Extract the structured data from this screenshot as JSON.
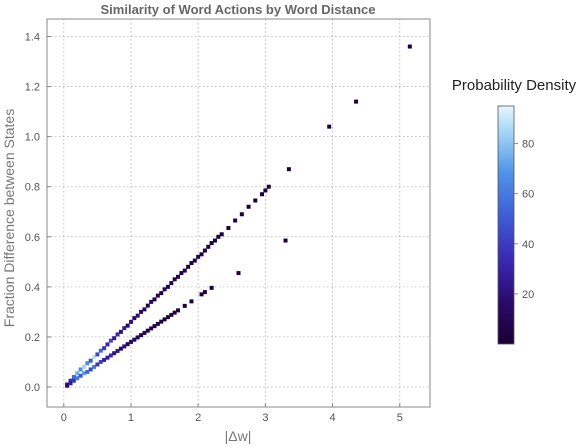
{
  "chart_data": {
    "type": "heatmap",
    "title": "Similarity of Word Actions by Word Distance",
    "xlabel": "|Δw|",
    "ylabel": "Fraction Difference between States",
    "xlim": [
      -0.25,
      5.45
    ],
    "ylim": [
      -0.08,
      1.47
    ],
    "x_ticks": [
      0,
      1,
      2,
      3,
      4,
      5
    ],
    "y_ticks": [
      0.0,
      0.2,
      0.4,
      0.6,
      0.8,
      1.0,
      1.2,
      1.4
    ],
    "x_tick_labels": [
      "0",
      "1",
      "2",
      "3",
      "4",
      "5"
    ],
    "y_tick_labels": [
      "0.0",
      "0.2",
      "0.4",
      "0.6",
      "0.8",
      "1.0",
      "1.2",
      "1.4"
    ],
    "grid": true,
    "legend": {
      "title": "Probability Density",
      "position": "right",
      "range": [
        0,
        95
      ],
      "ticks": [
        20,
        40,
        60,
        80
      ],
      "tick_labels": [
        "20",
        "40",
        "60",
        "80"
      ],
      "colors": [
        "#1a0033",
        "#2a0a6b",
        "#3a2ab5",
        "#3f60d8",
        "#4f94e8",
        "#9fd2f5",
        "#e6f6ff"
      ]
    },
    "series": [
      {
        "description_points": "upper band, slope ~0.26",
        "points": [
          {
            "x": 0.05,
            "y": 0.01,
            "d": 20
          },
          {
            "x": 0.1,
            "y": 0.025,
            "d": 30
          },
          {
            "x": 0.15,
            "y": 0.04,
            "d": 50
          },
          {
            "x": 0.2,
            "y": 0.055,
            "d": 70
          },
          {
            "x": 0.25,
            "y": 0.07,
            "d": 60
          },
          {
            "x": 0.3,
            "y": 0.08,
            "d": 80
          },
          {
            "x": 0.35,
            "y": 0.095,
            "d": 60
          },
          {
            "x": 0.4,
            "y": 0.105,
            "d": 45
          },
          {
            "x": 0.45,
            "y": 0.12,
            "d": 85
          },
          {
            "x": 0.5,
            "y": 0.13,
            "d": 40
          },
          {
            "x": 0.55,
            "y": 0.145,
            "d": 50
          },
          {
            "x": 0.6,
            "y": 0.155,
            "d": 35
          },
          {
            "x": 0.65,
            "y": 0.17,
            "d": 30
          },
          {
            "x": 0.7,
            "y": 0.185,
            "d": 40
          },
          {
            "x": 0.75,
            "y": 0.195,
            "d": 25
          },
          {
            "x": 0.8,
            "y": 0.21,
            "d": 30
          },
          {
            "x": 0.85,
            "y": 0.22,
            "d": 20
          },
          {
            "x": 0.9,
            "y": 0.235,
            "d": 25
          },
          {
            "x": 0.95,
            "y": 0.245,
            "d": 15
          },
          {
            "x": 1.0,
            "y": 0.26,
            "d": 20
          },
          {
            "x": 1.05,
            "y": 0.275,
            "d": 15
          },
          {
            "x": 1.1,
            "y": 0.285,
            "d": 18
          },
          {
            "x": 1.15,
            "y": 0.3,
            "d": 12
          },
          {
            "x": 1.2,
            "y": 0.31,
            "d": 15
          },
          {
            "x": 1.25,
            "y": 0.325,
            "d": 10
          },
          {
            "x": 1.3,
            "y": 0.34,
            "d": 12
          },
          {
            "x": 1.35,
            "y": 0.35,
            "d": 9
          },
          {
            "x": 1.4,
            "y": 0.365,
            "d": 10
          },
          {
            "x": 1.45,
            "y": 0.375,
            "d": 8
          },
          {
            "x": 1.5,
            "y": 0.39,
            "d": 10
          },
          {
            "x": 1.55,
            "y": 0.4,
            "d": 7
          },
          {
            "x": 1.6,
            "y": 0.415,
            "d": 8
          },
          {
            "x": 1.65,
            "y": 0.43,
            "d": 6
          },
          {
            "x": 1.7,
            "y": 0.44,
            "d": 7
          },
          {
            "x": 1.75,
            "y": 0.455,
            "d": 5
          },
          {
            "x": 1.8,
            "y": 0.465,
            "d": 6
          },
          {
            "x": 1.85,
            "y": 0.48,
            "d": 5
          },
          {
            "x": 1.9,
            "y": 0.495,
            "d": 5
          },
          {
            "x": 1.95,
            "y": 0.505,
            "d": 4
          },
          {
            "x": 2.0,
            "y": 0.52,
            "d": 5
          },
          {
            "x": 2.05,
            "y": 0.53,
            "d": 4
          },
          {
            "x": 2.1,
            "y": 0.545,
            "d": 4
          },
          {
            "x": 2.15,
            "y": 0.56,
            "d": 3
          },
          {
            "x": 2.2,
            "y": 0.575,
            "d": 4
          },
          {
            "x": 2.25,
            "y": 0.585,
            "d": 3
          },
          {
            "x": 2.3,
            "y": 0.6,
            "d": 3
          },
          {
            "x": 2.35,
            "y": 0.61,
            "d": 3
          },
          {
            "x": 2.45,
            "y": 0.635,
            "d": 3
          },
          {
            "x": 2.55,
            "y": 0.665,
            "d": 3
          },
          {
            "x": 2.65,
            "y": 0.69,
            "d": 2
          },
          {
            "x": 2.75,
            "y": 0.72,
            "d": 2
          },
          {
            "x": 2.85,
            "y": 0.745,
            "d": 2
          },
          {
            "x": 2.95,
            "y": 0.77,
            "d": 2
          },
          {
            "x": 3.0,
            "y": 0.785,
            "d": 2
          },
          {
            "x": 3.05,
            "y": 0.8,
            "d": 2
          },
          {
            "x": 3.35,
            "y": 0.87,
            "d": 2
          },
          {
            "x": 3.95,
            "y": 1.04,
            "d": 2
          },
          {
            "x": 4.35,
            "y": 1.14,
            "d": 2
          },
          {
            "x": 5.15,
            "y": 1.36,
            "d": 2
          }
        ]
      },
      {
        "description_points": "lower band, slope ~0.18",
        "points": [
          {
            "x": 0.05,
            "y": 0.005,
            "d": 15
          },
          {
            "x": 0.1,
            "y": 0.015,
            "d": 25
          },
          {
            "x": 0.15,
            "y": 0.025,
            "d": 35
          },
          {
            "x": 0.2,
            "y": 0.035,
            "d": 55
          },
          {
            "x": 0.25,
            "y": 0.045,
            "d": 45
          },
          {
            "x": 0.3,
            "y": 0.055,
            "d": 65
          },
          {
            "x": 0.35,
            "y": 0.06,
            "d": 50
          },
          {
            "x": 0.4,
            "y": 0.07,
            "d": 40
          },
          {
            "x": 0.45,
            "y": 0.08,
            "d": 55
          },
          {
            "x": 0.5,
            "y": 0.09,
            "d": 35
          },
          {
            "x": 0.55,
            "y": 0.1,
            "d": 40
          },
          {
            "x": 0.6,
            "y": 0.108,
            "d": 28
          },
          {
            "x": 0.65,
            "y": 0.117,
            "d": 25
          },
          {
            "x": 0.7,
            "y": 0.126,
            "d": 30
          },
          {
            "x": 0.75,
            "y": 0.135,
            "d": 20
          },
          {
            "x": 0.8,
            "y": 0.144,
            "d": 22
          },
          {
            "x": 0.85,
            "y": 0.153,
            "d": 15
          },
          {
            "x": 0.9,
            "y": 0.162,
            "d": 18
          },
          {
            "x": 0.95,
            "y": 0.171,
            "d": 12
          },
          {
            "x": 1.0,
            "y": 0.18,
            "d": 15
          },
          {
            "x": 1.05,
            "y": 0.189,
            "d": 11
          },
          {
            "x": 1.1,
            "y": 0.198,
            "d": 12
          },
          {
            "x": 1.15,
            "y": 0.207,
            "d": 9
          },
          {
            "x": 1.2,
            "y": 0.216,
            "d": 10
          },
          {
            "x": 1.25,
            "y": 0.225,
            "d": 8
          },
          {
            "x": 1.3,
            "y": 0.234,
            "d": 9
          },
          {
            "x": 1.35,
            "y": 0.243,
            "d": 7
          },
          {
            "x": 1.4,
            "y": 0.252,
            "d": 8
          },
          {
            "x": 1.45,
            "y": 0.261,
            "d": 6
          },
          {
            "x": 1.5,
            "y": 0.27,
            "d": 6
          },
          {
            "x": 1.55,
            "y": 0.279,
            "d": 5
          },
          {
            "x": 1.6,
            "y": 0.288,
            "d": 5
          },
          {
            "x": 1.65,
            "y": 0.297,
            "d": 4
          },
          {
            "x": 1.7,
            "y": 0.306,
            "d": 4
          },
          {
            "x": 1.8,
            "y": 0.324,
            "d": 3
          },
          {
            "x": 1.9,
            "y": 0.342,
            "d": 3
          },
          {
            "x": 2.05,
            "y": 0.37,
            "d": 3
          },
          {
            "x": 2.1,
            "y": 0.379,
            "d": 3
          },
          {
            "x": 2.2,
            "y": 0.396,
            "d": 2
          },
          {
            "x": 2.6,
            "y": 0.455,
            "d": 2
          },
          {
            "x": 3.3,
            "y": 0.585,
            "d": 2
          }
        ]
      }
    ]
  }
}
